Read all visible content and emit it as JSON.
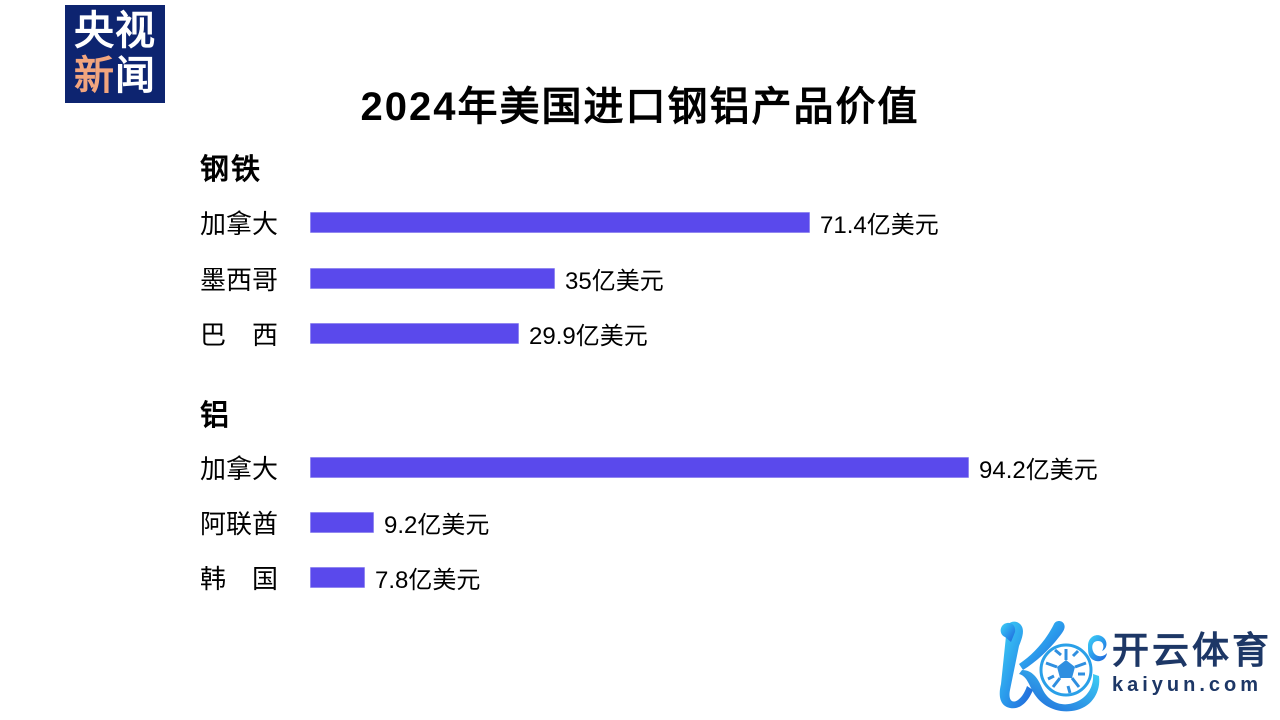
{
  "logo": {
    "line1": "央视",
    "line2_char1": "新",
    "line2_char2": "闻"
  },
  "title": "2024年美国进口钢铝产品价值",
  "chart_data": {
    "type": "bar",
    "orientation": "horizontal",
    "title": "2024年美国进口钢铝产品价值",
    "unit": "亿美元",
    "bar_color": "#5a49ec",
    "xlim": [
      0,
      100
    ],
    "grid": false,
    "legend": "none",
    "groups": [
      {
        "name": "钢铁",
        "bars": [
          {
            "label": "加拿大",
            "value": 71.4,
            "value_label": "71.4亿美元"
          },
          {
            "label": "墨西哥",
            "value": 35,
            "value_label": "35亿美元"
          },
          {
            "label": "巴西",
            "display_label": "巴西",
            "value": 29.9,
            "value_label": "29.9亿美元"
          }
        ]
      },
      {
        "name": "铝",
        "bars": [
          {
            "label": "加拿大",
            "value": 94.2,
            "value_label": "94.2亿美元"
          },
          {
            "label": "阿联酋",
            "value": 9.2,
            "value_label": "9.2亿美元"
          },
          {
            "label": "韩国",
            "display_label": "韩国",
            "value": 7.8,
            "value_label": "7.8亿美元"
          }
        ]
      }
    ]
  },
  "watermark": {
    "brand": "开云体育",
    "domain": "kaiyun.com"
  }
}
